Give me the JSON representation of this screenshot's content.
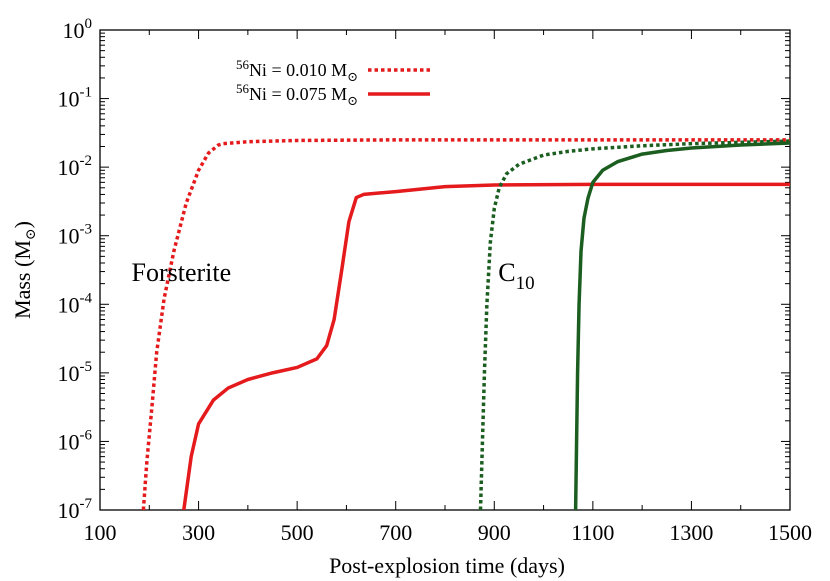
{
  "chart_data": {
    "type": "line",
    "xlabel": "Post-explosion time (days)",
    "ylabel": "Mass (M",
    "ylabel_suffix": ")",
    "ylabel_sub": "⊙",
    "xlim": [
      100,
      1500
    ],
    "ylim": [
      1e-07,
      1
    ],
    "yscale": "log",
    "x_ticks": [
      100,
      300,
      500,
      700,
      900,
      1100,
      1300,
      1500
    ],
    "y_ticks": [
      {
        "value": 1e-07,
        "base": "10",
        "exp": "-7"
      },
      {
        "value": 1e-06,
        "base": "10",
        "exp": "-6"
      },
      {
        "value": 1e-05,
        "base": "10",
        "exp": "-5"
      },
      {
        "value": 0.0001,
        "base": "10",
        "exp": "-4"
      },
      {
        "value": 0.001,
        "base": "10",
        "exp": "-3"
      },
      {
        "value": 0.01,
        "base": "10",
        "exp": "-2"
      },
      {
        "value": 0.1,
        "base": "10",
        "exp": "-1"
      },
      {
        "value": 1,
        "base": "10",
        "exp": "0"
      }
    ],
    "legend_location": "top-left",
    "legend": [
      {
        "sup": "56",
        "text": "Ni = 0.010 M",
        "sub": "⊙",
        "style": "dashed",
        "color": "#e41a1c"
      },
      {
        "sup": "56",
        "text": "Ni = 0.075 M",
        "sub": "⊙",
        "style": "solid",
        "color": "#e41a1c"
      }
    ],
    "annotations": [
      {
        "text": "Forsterite",
        "sub": "",
        "x": 265,
        "y": 0.00022
      },
      {
        "text": "C",
        "sub": "10",
        "x": 945,
        "y": 0.00022
      }
    ],
    "series": [
      {
        "group": "forsterite",
        "ni": "0.010",
        "style": "dashed",
        "color": "#e41a1c",
        "x": [
          188,
          195,
          205,
          215,
          230,
          250,
          275,
          300,
          320,
          340,
          350,
          400,
          500,
          700,
          900,
          1100,
          1300,
          1500
        ],
        "y": [
          1e-07,
          5e-07,
          3e-06,
          2e-05,
          0.00012,
          0.0006,
          0.003,
          0.009,
          0.016,
          0.021,
          0.022,
          0.0235,
          0.0245,
          0.025,
          0.025,
          0.025,
          0.025,
          0.025
        ]
      },
      {
        "group": "forsterite",
        "ni": "0.075",
        "style": "solid",
        "color": "#e41a1c",
        "x": [
          270,
          285,
          300,
          330,
          360,
          400,
          450,
          500,
          540,
          560,
          575,
          590,
          605,
          620,
          635,
          700,
          800,
          900,
          1100,
          1300,
          1500
        ],
        "y": [
          1e-07,
          6e-07,
          1.8e-06,
          4e-06,
          6e-06,
          8e-06,
          1e-05,
          1.2e-05,
          1.6e-05,
          2.5e-05,
          6e-05,
          0.0003,
          0.0016,
          0.0036,
          0.004,
          0.0044,
          0.0052,
          0.0055,
          0.0056,
          0.0056,
          0.0056
        ]
      },
      {
        "group": "c10",
        "ni": "0.010",
        "style": "dashed",
        "color": "#1b5e20",
        "x": [
          872,
          876,
          880,
          885,
          892,
          900,
          910,
          925,
          950,
          1000,
          1050,
          1100,
          1200,
          1300,
          1400,
          1500
        ],
        "y": [
          1e-07,
          1e-06,
          1e-05,
          0.0001,
          0.0008,
          0.0025,
          0.005,
          0.008,
          0.011,
          0.015,
          0.017,
          0.0185,
          0.0205,
          0.022,
          0.023,
          0.024
        ]
      },
      {
        "group": "c10",
        "ni": "0.075",
        "style": "solid",
        "color": "#1b5e20",
        "x": [
          1065,
          1067,
          1069,
          1072,
          1076,
          1082,
          1090,
          1100,
          1120,
          1150,
          1200,
          1250,
          1300,
          1400,
          1500
        ],
        "y": [
          1e-07,
          1e-06,
          1e-05,
          0.0001,
          0.0006,
          0.0018,
          0.0035,
          0.006,
          0.009,
          0.012,
          0.0155,
          0.0175,
          0.019,
          0.021,
          0.0225
        ]
      }
    ]
  }
}
